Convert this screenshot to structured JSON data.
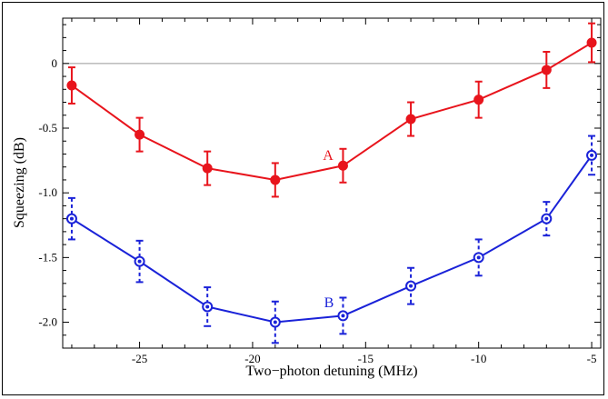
{
  "chart_data": {
    "type": "line",
    "xlabel": "Two−photon detuning (MHz)",
    "ylabel": "Squeezing (dB)",
    "xlim": [
      -28.4,
      -4.6
    ],
    "ylim": [
      -2.2,
      0.35
    ],
    "x_ticks": [
      -25,
      -20,
      -15,
      -10,
      -5
    ],
    "x_tick_labels": [
      "-25",
      "-20",
      "-15",
      "-10",
      "-5"
    ],
    "y_ticks": [
      0,
      -0.5,
      -1.0,
      -1.5,
      -2.0
    ],
    "y_tick_labels": [
      "0",
      "-0.5",
      "-1.0",
      "-1.5",
      "-2.0"
    ],
    "reference_line": 0,
    "grid": false,
    "series": [
      {
        "name": "A",
        "color": "#e8141c",
        "marker": "filled-circle",
        "errorbar_style": "solid",
        "x": [
          -28,
          -25,
          -22,
          -19,
          -16,
          -13,
          -10,
          -7,
          -5
        ],
        "values": [
          -0.17,
          -0.55,
          -0.81,
          -0.9,
          -0.79,
          -0.43,
          -0.28,
          -0.05,
          0.16
        ],
        "errors": [
          0.14,
          0.13,
          0.13,
          0.13,
          0.13,
          0.13,
          0.14,
          0.14,
          0.15
        ]
      },
      {
        "name": "B",
        "color": "#1a22d8",
        "marker": "open-circle-dot",
        "errorbar_style": "dashed",
        "x": [
          -28,
          -25,
          -22,
          -19,
          -16,
          -13,
          -10,
          -7,
          -5
        ],
        "values": [
          -1.2,
          -1.53,
          -1.88,
          -2.0,
          -1.95,
          -1.72,
          -1.5,
          -1.2,
          -0.71
        ],
        "errors": [
          0.16,
          0.16,
          0.15,
          0.16,
          0.14,
          0.14,
          0.14,
          0.13,
          0.15
        ]
      }
    ]
  }
}
